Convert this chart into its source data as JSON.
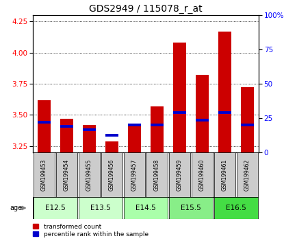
{
  "title": "GDS2949 / 115078_r_at",
  "samples": [
    "GSM199453",
    "GSM199454",
    "GSM199455",
    "GSM199456",
    "GSM199457",
    "GSM199458",
    "GSM199459",
    "GSM199460",
    "GSM199461",
    "GSM199462"
  ],
  "red_values": [
    3.62,
    3.47,
    3.42,
    3.29,
    3.42,
    3.57,
    4.08,
    3.82,
    4.17,
    3.72
  ],
  "blue_values": [
    3.44,
    3.41,
    3.38,
    3.34,
    3.42,
    3.42,
    3.52,
    3.46,
    3.52,
    3.42
  ],
  "blue_only_idx": 3,
  "ylim_left": [
    3.2,
    4.3
  ],
  "ylim_right": [
    0,
    100
  ],
  "yticks_left": [
    3.25,
    3.5,
    3.75,
    4.0,
    4.25
  ],
  "yticks_right": [
    0,
    25,
    50,
    75,
    100
  ],
  "baseline": 3.2,
  "age_groups": [
    {
      "label": "E12.5",
      "samples": [
        0,
        1
      ],
      "color": "#ccffcc"
    },
    {
      "label": "E13.5",
      "samples": [
        2,
        3
      ],
      "color": "#ccffcc"
    },
    {
      "label": "E14.5",
      "samples": [
        4,
        5
      ],
      "color": "#aaffaa"
    },
    {
      "label": "E15.5",
      "samples": [
        6,
        7
      ],
      "color": "#88ee88"
    },
    {
      "label": "E16.5",
      "samples": [
        8,
        9
      ],
      "color": "#44dd44"
    }
  ],
  "bar_color_red": "#cc0000",
  "bar_color_blue": "#0000cc",
  "sample_box_color": "#cccccc",
  "grid_color": "#000000",
  "title_fontsize": 10,
  "tick_fontsize": 7.5,
  "label_fontsize": 7
}
